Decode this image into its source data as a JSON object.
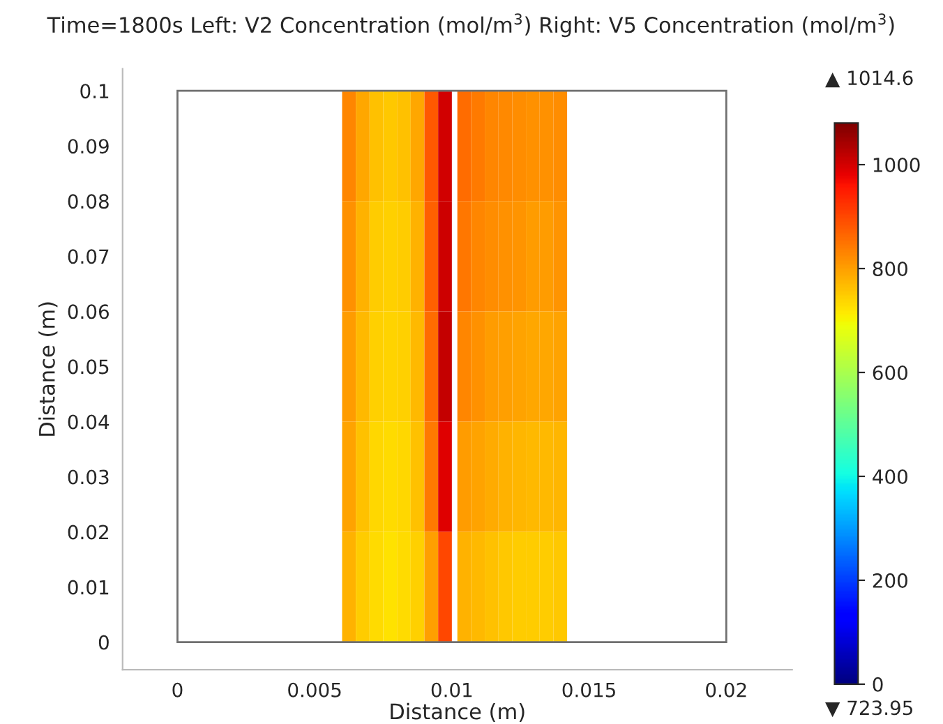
{
  "chart_data": {
    "type": "heatmap",
    "title": "Time=1800s Left: V2 Concentration (mol/m$^{3}$) Right: V5 Concentration (mol/m$^{3}$)",
    "xlabel": "Distance (m)",
    "ylabel": "Distance (m)",
    "x": [
      0.00625,
      0.00675,
      0.00725,
      0.00775,
      0.00825,
      0.00875,
      0.00925,
      0.00975,
      0.01045,
      0.01095,
      0.01145,
      0.01195,
      0.01245,
      0.01295,
      0.01345,
      0.01395
    ],
    "y": [
      0.09,
      0.07,
      0.05,
      0.03,
      0.01
    ],
    "cells": [
      [
        830,
        790,
        760,
        755,
        760,
        790,
        880,
        1000,
        860,
        840,
        830,
        825,
        820,
        815,
        815,
        820
      ],
      [
        815,
        780,
        750,
        745,
        750,
        780,
        870,
        1005,
        845,
        830,
        820,
        815,
        810,
        805,
        805,
        810
      ],
      [
        805,
        770,
        745,
        740,
        745,
        770,
        860,
        1014.6,
        830,
        815,
        805,
        800,
        795,
        790,
        790,
        795
      ],
      [
        795,
        760,
        735,
        730,
        735,
        760,
        840,
        990,
        805,
        795,
        785,
        780,
        775,
        770,
        770,
        775
      ],
      [
        780,
        750,
        730,
        723.95,
        730,
        745,
        800,
        900,
        780,
        770,
        760,
        755,
        750,
        750,
        750,
        755
      ]
    ],
    "clim": [
      0,
      1080
    ],
    "cticks": [
      0,
      200,
      400,
      600,
      800,
      1000
    ],
    "xlim": [
      -0.002,
      0.0224
    ],
    "ylim": [
      -0.005,
      0.104
    ],
    "xticks": [
      0,
      0.005,
      0.01,
      0.015,
      0.02
    ],
    "yticks": [
      0,
      0.01,
      0.02,
      0.03,
      0.04,
      0.05,
      0.06,
      0.07,
      0.08,
      0.09,
      0.1
    ],
    "annotations": [
      "▲ 1014.6",
      "▼ 723.95"
    ],
    "grid": false
  }
}
